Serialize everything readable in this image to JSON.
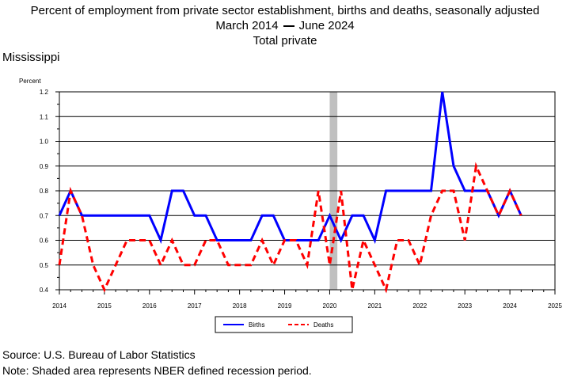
{
  "header": {
    "title": "Percent of employment from private sector establishment, births and deaths, seasonally adjusted",
    "range_start": "March 2014",
    "range_end": "June 2024",
    "subtitle2": "Total private",
    "state": "Mississippi"
  },
  "footer": {
    "source": "Source: U.S. Bureau of Labor Statistics",
    "note": "Note: Shaded area represents NBER defined recession period."
  },
  "chart_data": {
    "type": "line",
    "ylabel": "Percent",
    "ylim": [
      0.4,
      1.2
    ],
    "yticks": [
      "0.4",
      "0.5",
      "0.6",
      "0.7",
      "0.8",
      "0.9",
      "1.0",
      "1.1",
      "1.2"
    ],
    "xlim": [
      2014,
      2025
    ],
    "xticks": [
      "2014",
      "2015",
      "2016",
      "2017",
      "2018",
      "2019",
      "2020",
      "2021",
      "2022",
      "2023",
      "2024",
      "2025"
    ],
    "grid": "horizontal",
    "recession": [
      2020.0,
      2020.17
    ],
    "legend_position": "bottom-center",
    "x": [
      2014.0,
      2014.25,
      2014.5,
      2014.75,
      2015.0,
      2015.25,
      2015.5,
      2015.75,
      2016.0,
      2016.25,
      2016.5,
      2016.75,
      2017.0,
      2017.25,
      2017.5,
      2017.75,
      2018.0,
      2018.25,
      2018.5,
      2018.75,
      2019.0,
      2019.25,
      2019.5,
      2019.75,
      2020.0,
      2020.25,
      2020.5,
      2020.75,
      2021.0,
      2021.25,
      2021.5,
      2021.75,
      2022.0,
      2022.25,
      2022.5,
      2022.75,
      2023.0,
      2023.25,
      2023.5,
      2023.75,
      2024.0,
      2024.25
    ],
    "series": [
      {
        "name": "Births",
        "color": "#0000ff",
        "dash": "solid",
        "values": [
          0.7,
          0.8,
          0.7,
          0.7,
          0.7,
          0.7,
          0.7,
          0.7,
          0.7,
          0.6,
          0.8,
          0.8,
          0.7,
          0.7,
          0.6,
          0.6,
          0.6,
          0.6,
          0.7,
          0.7,
          0.6,
          0.6,
          0.6,
          0.6,
          0.7,
          0.6,
          0.7,
          0.7,
          0.6,
          0.8,
          0.8,
          0.8,
          0.8,
          0.8,
          1.2,
          0.9,
          0.8,
          0.8,
          0.8,
          0.7,
          0.8,
          0.7
        ]
      },
      {
        "name": "Deaths",
        "color": "#ff0000",
        "dash": "dashed",
        "values": [
          0.5,
          0.8,
          0.7,
          0.5,
          0.4,
          0.5,
          0.6,
          0.6,
          0.6,
          0.5,
          0.6,
          0.5,
          0.5,
          0.6,
          0.6,
          0.5,
          0.5,
          0.5,
          0.6,
          0.5,
          0.6,
          0.6,
          0.5,
          0.8,
          0.5,
          0.8,
          0.4,
          0.6,
          0.5,
          0.4,
          0.6,
          0.6,
          0.5,
          0.7,
          0.8,
          0.8,
          0.6,
          0.9,
          0.8,
          0.7,
          0.8,
          0.7
        ]
      }
    ]
  }
}
